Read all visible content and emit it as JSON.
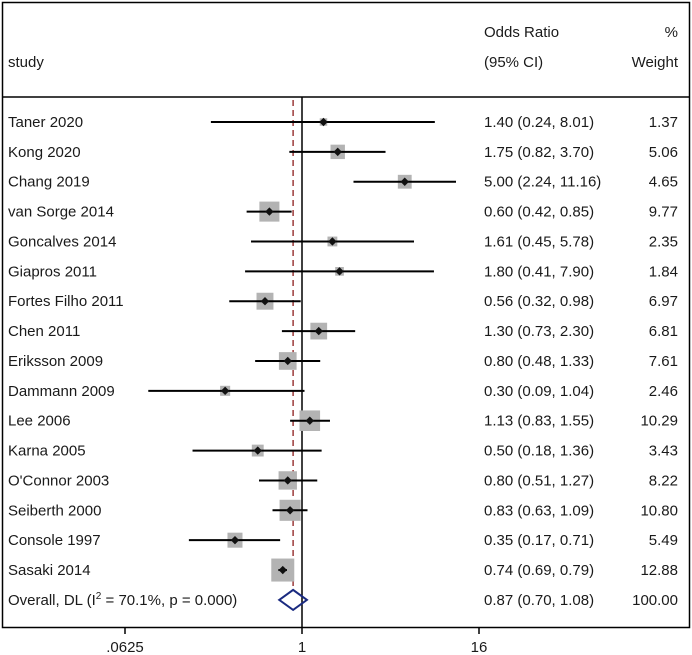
{
  "chart_data": {
    "type": "forest",
    "x_scale": "log",
    "header": {
      "study_label": "study",
      "effect_label_line1": "Odds Ratio",
      "effect_label_line2": "(95% CI)",
      "weight_label_line1": "%",
      "weight_label_line2": "Weight"
    },
    "studies": [
      {
        "name": "Taner 2020",
        "or": 1.4,
        "lo": 0.24,
        "hi": 8.01,
        "ci_text": "1.40 (0.24, 8.01)",
        "weight": 1.37,
        "weight_text": "1.37"
      },
      {
        "name": "Kong 2020",
        "or": 1.75,
        "lo": 0.82,
        "hi": 3.7,
        "ci_text": "1.75 (0.82, 3.70)",
        "weight": 5.06,
        "weight_text": "5.06"
      },
      {
        "name": "Chang 2019",
        "or": 5.0,
        "lo": 2.24,
        "hi": 11.16,
        "ci_text": "5.00 (2.24, 11.16)",
        "weight": 4.65,
        "weight_text": "4.65"
      },
      {
        "name": "van Sorge 2014",
        "or": 0.6,
        "lo": 0.42,
        "hi": 0.85,
        "ci_text": "0.60 (0.42, 0.85)",
        "weight": 9.77,
        "weight_text": "9.77"
      },
      {
        "name": "Goncalves 2014",
        "or": 1.61,
        "lo": 0.45,
        "hi": 5.78,
        "ci_text": "1.61 (0.45, 5.78)",
        "weight": 2.35,
        "weight_text": "2.35"
      },
      {
        "name": "Giapros 2011",
        "or": 1.8,
        "lo": 0.41,
        "hi": 7.9,
        "ci_text": "1.80 (0.41, 7.90)",
        "weight": 1.84,
        "weight_text": "1.84"
      },
      {
        "name": "Fortes Filho 2011",
        "or": 0.56,
        "lo": 0.32,
        "hi": 0.98,
        "ci_text": "0.56 (0.32, 0.98)",
        "weight": 6.97,
        "weight_text": "6.97"
      },
      {
        "name": "Chen 2011",
        "or": 1.3,
        "lo": 0.73,
        "hi": 2.3,
        "ci_text": "1.30 (0.73, 2.30)",
        "weight": 6.81,
        "weight_text": "6.81"
      },
      {
        "name": "Eriksson 2009",
        "or": 0.8,
        "lo": 0.48,
        "hi": 1.33,
        "ci_text": "0.80 (0.48, 1.33)",
        "weight": 7.61,
        "weight_text": "7.61"
      },
      {
        "name": "Dammann 2009",
        "or": 0.3,
        "lo": 0.09,
        "hi": 1.04,
        "ci_text": "0.30 (0.09, 1.04)",
        "weight": 2.46,
        "weight_text": "2.46"
      },
      {
        "name": "Lee 2006",
        "or": 1.13,
        "lo": 0.83,
        "hi": 1.55,
        "ci_text": "1.13 (0.83, 1.55)",
        "weight": 10.29,
        "weight_text": "10.29"
      },
      {
        "name": "Karna 2005",
        "or": 0.5,
        "lo": 0.18,
        "hi": 1.36,
        "ci_text": "0.50 (0.18, 1.36)",
        "weight": 3.43,
        "weight_text": "3.43"
      },
      {
        "name": "O'Connor 2003",
        "or": 0.8,
        "lo": 0.51,
        "hi": 1.27,
        "ci_text": "0.80 (0.51, 1.27)",
        "weight": 8.22,
        "weight_text": "8.22"
      },
      {
        "name": "Seiberth 2000",
        "or": 0.83,
        "lo": 0.63,
        "hi": 1.09,
        "ci_text": "0.83 (0.63, 1.09)",
        "weight": 10.8,
        "weight_text": "10.80"
      },
      {
        "name": "Console 1997",
        "or": 0.35,
        "lo": 0.17,
        "hi": 0.71,
        "ci_text": "0.35 (0.17, 0.71)",
        "weight": 5.49,
        "weight_text": "5.49"
      },
      {
        "name": "Sasaki 2014",
        "or": 0.74,
        "lo": 0.69,
        "hi": 0.79,
        "ci_text": "0.74 (0.69, 0.79)",
        "weight": 12.88,
        "weight_text": "12.88"
      }
    ],
    "overall": {
      "label_prefix": "Overall, DL (I",
      "label_sup": "2",
      "label_suffix": " = 70.1%, p = 0.000)",
      "or": 0.87,
      "lo": 0.7,
      "hi": 1.08,
      "ci_text": "0.87 (0.70, 1.08)",
      "weight_text": "100.00"
    },
    "x_axis": {
      "xlim": [
        0.025,
        200
      ],
      "ticks": [
        {
          "value": 0.0625,
          "label": ".0625"
        },
        {
          "value": 1,
          "label": "1"
        },
        {
          "value": 16,
          "label": "16"
        }
      ],
      "null_line": 1
    },
    "colors": {
      "weight_box": "#b3b3b3",
      "point": "#111111",
      "ci_line": "#000000",
      "overall_line": "#9b3a3a",
      "diamond": "#1a2a80"
    }
  }
}
